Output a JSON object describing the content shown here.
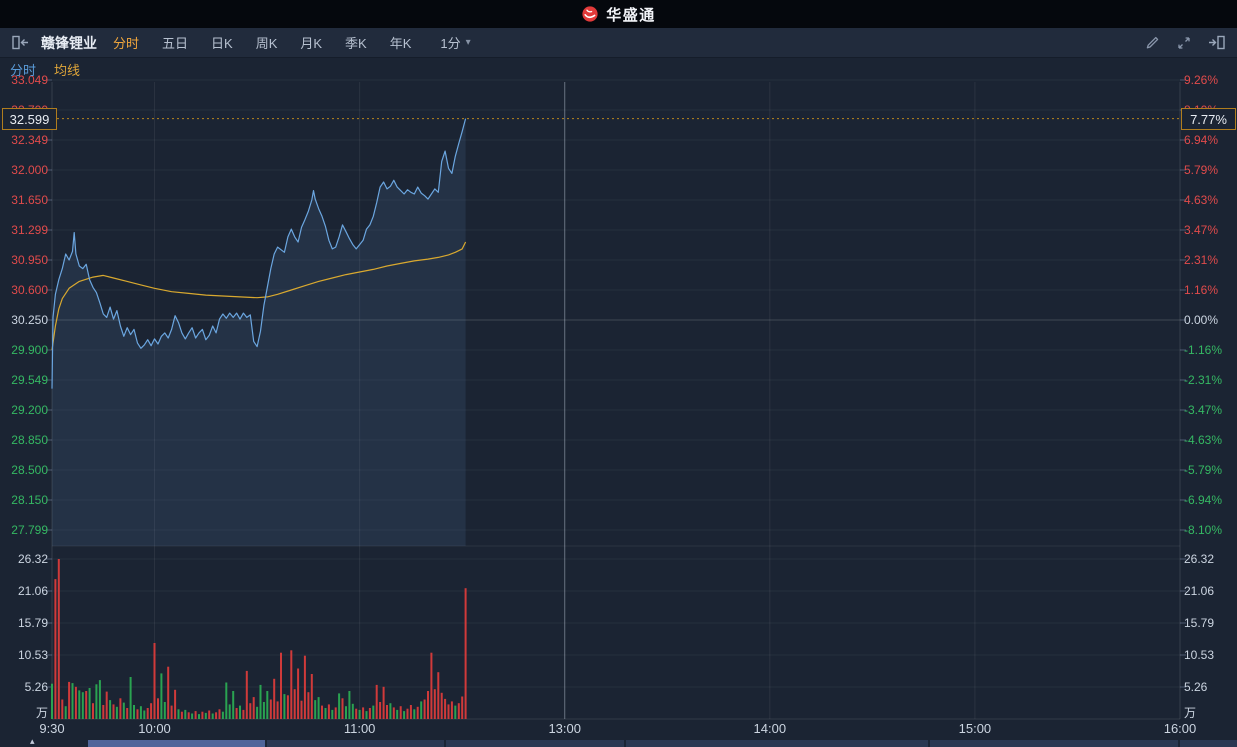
{
  "header": {
    "brand": "华盛通"
  },
  "icons": {
    "caret_down": "▾",
    "navigator_caret": "▴"
  },
  "toolbar": {
    "stock_name": "赣锋锂业",
    "tabs": [
      {
        "label": "分时",
        "active": true
      },
      {
        "label": "五日",
        "active": false
      },
      {
        "label": "日K",
        "active": false
      },
      {
        "label": "周K",
        "active": false
      },
      {
        "label": "月K",
        "active": false
      },
      {
        "label": "季K",
        "active": false
      },
      {
        "label": "年K",
        "active": false
      }
    ],
    "interval": {
      "label": "1分"
    }
  },
  "legend": {
    "items": [
      {
        "label": "分时",
        "color": "#5a9bd8"
      },
      {
        "label": "均线",
        "color": "#e0a63a"
      }
    ]
  },
  "quote": {
    "current_price": "32.599",
    "current_percent": "7.77%"
  },
  "colors": {
    "up": "#e14b4b",
    "down": "#35b863",
    "neutral": "#ccd5e1",
    "price_line": "#6ba6e0",
    "avg_line": "#d9a92f",
    "volume_up": "#d03a3a",
    "volume_down": "#2aa351",
    "current_line": "#b8851f",
    "accent_tab": "#f0a63c",
    "brand_red": "#e23a3a"
  },
  "chart_data": {
    "type": "line",
    "title": "赣锋锂业 分时图",
    "prev_close": 30.25,
    "current_price": 32.599,
    "current_change_percent": "7.77%",
    "y_axis_price": [
      "33.049",
      "32.700",
      "32.349",
      "32.000",
      "31.650",
      "31.299",
      "30.950",
      "30.600",
      "30.250",
      "29.900",
      "29.549",
      "29.200",
      "28.850",
      "28.500",
      "28.150",
      "27.799"
    ],
    "y_axis_percent": [
      "9.26%",
      "8.10%",
      "6.94%",
      "5.79%",
      "4.63%",
      "3.47%",
      "2.31%",
      "1.16%",
      "0.00%",
      "-1.16%",
      "-2.31%",
      "-3.47%",
      "-4.63%",
      "-5.79%",
      "-6.94%",
      "-8.10%"
    ],
    "price_range": [
      27.799,
      33.049
    ],
    "x_axis": {
      "unit": "minutes since 9:30, lunch break 12:00-13:00 skipped",
      "total_minutes": 330,
      "ticks": [
        {
          "t": 0,
          "label": "9:30"
        },
        {
          "t": 30,
          "label": "10:00"
        },
        {
          "t": 90,
          "label": "11:00"
        },
        {
          "t": 150,
          "label": "13:00",
          "session_divider": true
        },
        {
          "t": 210,
          "label": "14:00"
        },
        {
          "t": 270,
          "label": "15:00"
        },
        {
          "t": 330,
          "label": "16:00"
        }
      ]
    },
    "volume_axis": {
      "labels": [
        "26.32",
        "21.06",
        "15.79",
        "10.53",
        "5.26"
      ],
      "unit": "万"
    },
    "price_line": [
      [
        0,
        29.45
      ],
      [
        0.3,
        30.28
      ],
      [
        1,
        30.55
      ],
      [
        2,
        30.72
      ],
      [
        3,
        30.85
      ],
      [
        4,
        31.02
      ],
      [
        5,
        30.95
      ],
      [
        6,
        31.05
      ],
      [
        6.5,
        31.27
      ],
      [
        7,
        31.02
      ],
      [
        8,
        30.88
      ],
      [
        9,
        30.85
      ],
      [
        10,
        30.9
      ],
      [
        11,
        30.72
      ],
      [
        12,
        30.63
      ],
      [
        13,
        30.57
      ],
      [
        14,
        30.45
      ],
      [
        15,
        30.32
      ],
      [
        16,
        30.28
      ],
      [
        17,
        30.4
      ],
      [
        18,
        30.26
      ],
      [
        19,
        30.36
      ],
      [
        20,
        30.18
      ],
      [
        21,
        30.06
      ],
      [
        22,
        30.16
      ],
      [
        23,
        30.08
      ],
      [
        24,
        30.14
      ],
      [
        25,
        29.98
      ],
      [
        26,
        29.92
      ],
      [
        27,
        29.96
      ],
      [
        28,
        30.02
      ],
      [
        29,
        29.95
      ],
      [
        30,
        30.03
      ],
      [
        31,
        29.97
      ],
      [
        32,
        30.06
      ],
      [
        33,
        30.1
      ],
      [
        34,
        30.04
      ],
      [
        35,
        30.14
      ],
      [
        36,
        30.3
      ],
      [
        37,
        30.22
      ],
      [
        38,
        30.1
      ],
      [
        39,
        30.03
      ],
      [
        40,
        30.1
      ],
      [
        41,
        30.16
      ],
      [
        42,
        30.04
      ],
      [
        43,
        30.1
      ],
      [
        44,
        30.14
      ],
      [
        45,
        30.02
      ],
      [
        46,
        30.07
      ],
      [
        47,
        30.18
      ],
      [
        48,
        30.1
      ],
      [
        49,
        30.26
      ],
      [
        50,
        30.32
      ],
      [
        51,
        30.27
      ],
      [
        52,
        30.33
      ],
      [
        53,
        30.28
      ],
      [
        54,
        30.33
      ],
      [
        55,
        30.26
      ],
      [
        56,
        30.33
      ],
      [
        57,
        30.28
      ],
      [
        58,
        30.31
      ],
      [
        59,
        30.0
      ],
      [
        60,
        29.94
      ],
      [
        61,
        30.12
      ],
      [
        62,
        30.42
      ],
      [
        63,
        30.63
      ],
      [
        64,
        30.85
      ],
      [
        65,
        31.02
      ],
      [
        66,
        31.1
      ],
      [
        67,
        31.07
      ],
      [
        68,
        31.04
      ],
      [
        69,
        31.22
      ],
      [
        70,
        31.31
      ],
      [
        71,
        31.22
      ],
      [
        72,
        31.16
      ],
      [
        73,
        31.33
      ],
      [
        74,
        31.42
      ],
      [
        75,
        31.52
      ],
      [
        76,
        31.65
      ],
      [
        76.5,
        31.76
      ],
      [
        77,
        31.66
      ],
      [
        78,
        31.55
      ],
      [
        79,
        31.46
      ],
      [
        80,
        31.34
      ],
      [
        81,
        31.18
      ],
      [
        82,
        31.08
      ],
      [
        83,
        31.1
      ],
      [
        84,
        31.22
      ],
      [
        85,
        31.36
      ],
      [
        86,
        31.28
      ],
      [
        87,
        31.2
      ],
      [
        88,
        31.13
      ],
      [
        89,
        31.08
      ],
      [
        90,
        31.13
      ],
      [
        91,
        31.18
      ],
      [
        92,
        31.31
      ],
      [
        93,
        31.36
      ],
      [
        94,
        31.46
      ],
      [
        95,
        31.62
      ],
      [
        96,
        31.8
      ],
      [
        97,
        31.86
      ],
      [
        98,
        31.78
      ],
      [
        99,
        31.81
      ],
      [
        100,
        31.88
      ],
      [
        101,
        31.8
      ],
      [
        102,
        31.76
      ],
      [
        103,
        31.72
      ],
      [
        104,
        31.77
      ],
      [
        105,
        31.74
      ],
      [
        106,
        31.72
      ],
      [
        107,
        31.8
      ],
      [
        108,
        31.73
      ],
      [
        109,
        31.7
      ],
      [
        110,
        31.66
      ],
      [
        111,
        31.72
      ],
      [
        112,
        31.78
      ],
      [
        113,
        31.74
      ],
      [
        114,
        32.1
      ],
      [
        115,
        32.22
      ],
      [
        116,
        32.02
      ],
      [
        117,
        31.96
      ],
      [
        118,
        32.16
      ],
      [
        119,
        32.31
      ],
      [
        120,
        32.45
      ],
      [
        121,
        32.6
      ]
    ],
    "avg_line": [
      [
        0,
        29.9
      ],
      [
        1,
        30.18
      ],
      [
        2,
        30.38
      ],
      [
        3,
        30.5
      ],
      [
        5,
        30.62
      ],
      [
        8,
        30.7
      ],
      [
        12,
        30.75
      ],
      [
        15,
        30.77
      ],
      [
        18,
        30.74
      ],
      [
        22,
        30.7
      ],
      [
        26,
        30.66
      ],
      [
        30,
        30.62
      ],
      [
        35,
        30.58
      ],
      [
        40,
        30.56
      ],
      [
        45,
        30.54
      ],
      [
        50,
        30.53
      ],
      [
        55,
        30.52
      ],
      [
        60,
        30.51
      ],
      [
        63,
        30.52
      ],
      [
        66,
        30.55
      ],
      [
        70,
        30.6
      ],
      [
        74,
        30.65
      ],
      [
        78,
        30.7
      ],
      [
        82,
        30.74
      ],
      [
        86,
        30.78
      ],
      [
        90,
        30.81
      ],
      [
        94,
        30.84
      ],
      [
        98,
        30.88
      ],
      [
        102,
        30.91
      ],
      [
        106,
        30.94
      ],
      [
        110,
        30.96
      ],
      [
        113,
        30.98
      ],
      [
        116,
        31.01
      ],
      [
        118,
        31.04
      ],
      [
        120,
        31.08
      ],
      [
        121,
        31.16
      ]
    ],
    "volume_bars": [
      [
        0,
        5.8,
        "g"
      ],
      [
        1,
        23.0,
        "r"
      ],
      [
        2,
        26.3,
        "r"
      ],
      [
        3,
        3.2,
        "r"
      ],
      [
        4,
        2.1,
        "g"
      ],
      [
        5,
        6.1,
        "r"
      ],
      [
        6,
        5.9,
        "g"
      ],
      [
        7,
        5.3,
        "r"
      ],
      [
        8,
        4.7,
        "g"
      ],
      [
        9,
        4.4,
        "g"
      ],
      [
        10,
        4.6,
        "r"
      ],
      [
        11,
        5.1,
        "g"
      ],
      [
        12,
        2.6,
        "r"
      ],
      [
        13,
        5.7,
        "g"
      ],
      [
        14,
        6.4,
        "g"
      ],
      [
        15,
        2.3,
        "r"
      ],
      [
        16,
        4.5,
        "r"
      ],
      [
        17,
        3.1,
        "g"
      ],
      [
        18,
        2.4,
        "r"
      ],
      [
        19,
        2.0,
        "g"
      ],
      [
        20,
        3.4,
        "r"
      ],
      [
        21,
        2.7,
        "g"
      ],
      [
        22,
        1.8,
        "r"
      ],
      [
        23,
        6.9,
        "g"
      ],
      [
        24,
        2.3,
        "g"
      ],
      [
        25,
        1.6,
        "r"
      ],
      [
        26,
        2.1,
        "g"
      ],
      [
        27,
        1.4,
        "g"
      ],
      [
        28,
        1.8,
        "r"
      ],
      [
        29,
        2.6,
        "r"
      ],
      [
        30,
        12.5,
        "r"
      ],
      [
        31,
        3.4,
        "r"
      ],
      [
        32,
        7.5,
        "g"
      ],
      [
        33,
        2.8,
        "g"
      ],
      [
        34,
        8.6,
        "r"
      ],
      [
        35,
        2.2,
        "r"
      ],
      [
        36,
        4.8,
        "r"
      ],
      [
        37,
        1.6,
        "g"
      ],
      [
        38,
        1.2,
        "r"
      ],
      [
        39,
        1.5,
        "g"
      ],
      [
        40,
        1.1,
        "r"
      ],
      [
        41,
        0.9,
        "g"
      ],
      [
        42,
        1.3,
        "r"
      ],
      [
        43,
        0.8,
        "g"
      ],
      [
        44,
        1.2,
        "r"
      ],
      [
        45,
        1.0,
        "g"
      ],
      [
        46,
        1.4,
        "r"
      ],
      [
        47,
        0.9,
        "g"
      ],
      [
        48,
        1.1,
        "r"
      ],
      [
        49,
        1.6,
        "r"
      ],
      [
        50,
        1.2,
        "g"
      ],
      [
        51,
        6.0,
        "g"
      ],
      [
        52,
        2.4,
        "g"
      ],
      [
        53,
        4.6,
        "g"
      ],
      [
        54,
        1.8,
        "r"
      ],
      [
        55,
        2.2,
        "g"
      ],
      [
        56,
        1.5,
        "r"
      ],
      [
        57,
        7.9,
        "r"
      ],
      [
        58,
        2.6,
        "r"
      ],
      [
        59,
        3.6,
        "r"
      ],
      [
        60,
        2.0,
        "g"
      ],
      [
        61,
        5.6,
        "g"
      ],
      [
        62,
        2.8,
        "g"
      ],
      [
        63,
        4.6,
        "g"
      ],
      [
        64,
        3.2,
        "r"
      ],
      [
        65,
        6.6,
        "r"
      ],
      [
        66,
        2.9,
        "r"
      ],
      [
        67,
        10.9,
        "r"
      ],
      [
        68,
        4.1,
        "g"
      ],
      [
        69,
        3.9,
        "r"
      ],
      [
        70,
        11.3,
        "r"
      ],
      [
        71,
        4.9,
        "r"
      ],
      [
        72,
        8.3,
        "r"
      ],
      [
        73,
        3.0,
        "r"
      ],
      [
        74,
        10.4,
        "r"
      ],
      [
        75,
        4.4,
        "r"
      ],
      [
        76,
        7.4,
        "r"
      ],
      [
        77,
        3.1,
        "g"
      ],
      [
        78,
        3.6,
        "g"
      ],
      [
        79,
        2.2,
        "r"
      ],
      [
        80,
        1.8,
        "g"
      ],
      [
        81,
        2.4,
        "r"
      ],
      [
        82,
        1.5,
        "g"
      ],
      [
        83,
        1.9,
        "r"
      ],
      [
        84,
        4.2,
        "g"
      ],
      [
        85,
        3.4,
        "r"
      ],
      [
        86,
        2.1,
        "g"
      ],
      [
        87,
        4.6,
        "g"
      ],
      [
        88,
        2.5,
        "g"
      ],
      [
        89,
        1.7,
        "r"
      ],
      [
        90,
        1.5,
        "g"
      ],
      [
        91,
        1.9,
        "r"
      ],
      [
        92,
        1.3,
        "g"
      ],
      [
        93,
        1.8,
        "r"
      ],
      [
        94,
        2.2,
        "g"
      ],
      [
        95,
        5.6,
        "r"
      ],
      [
        96,
        2.8,
        "r"
      ],
      [
        97,
        5.3,
        "r"
      ],
      [
        98,
        2.3,
        "r"
      ],
      [
        99,
        2.6,
        "g"
      ],
      [
        100,
        1.9,
        "r"
      ],
      [
        101,
        1.5,
        "g"
      ],
      [
        102,
        2.1,
        "r"
      ],
      [
        103,
        1.3,
        "g"
      ],
      [
        104,
        1.7,
        "r"
      ],
      [
        105,
        2.3,
        "r"
      ],
      [
        106,
        1.6,
        "g"
      ],
      [
        107,
        2.0,
        "r"
      ],
      [
        108,
        2.9,
        "g"
      ],
      [
        109,
        3.2,
        "r"
      ],
      [
        110,
        4.6,
        "r"
      ],
      [
        111,
        10.9,
        "r"
      ],
      [
        112,
        4.9,
        "r"
      ],
      [
        113,
        7.7,
        "r"
      ],
      [
        114,
        4.3,
        "r"
      ],
      [
        115,
        3.3,
        "r"
      ],
      [
        116,
        2.4,
        "r"
      ],
      [
        117,
        2.9,
        "r"
      ],
      [
        118,
        2.2,
        "g"
      ],
      [
        119,
        2.6,
        "r"
      ],
      [
        120,
        3.7,
        "r"
      ],
      [
        121,
        21.5,
        "r"
      ]
    ]
  }
}
